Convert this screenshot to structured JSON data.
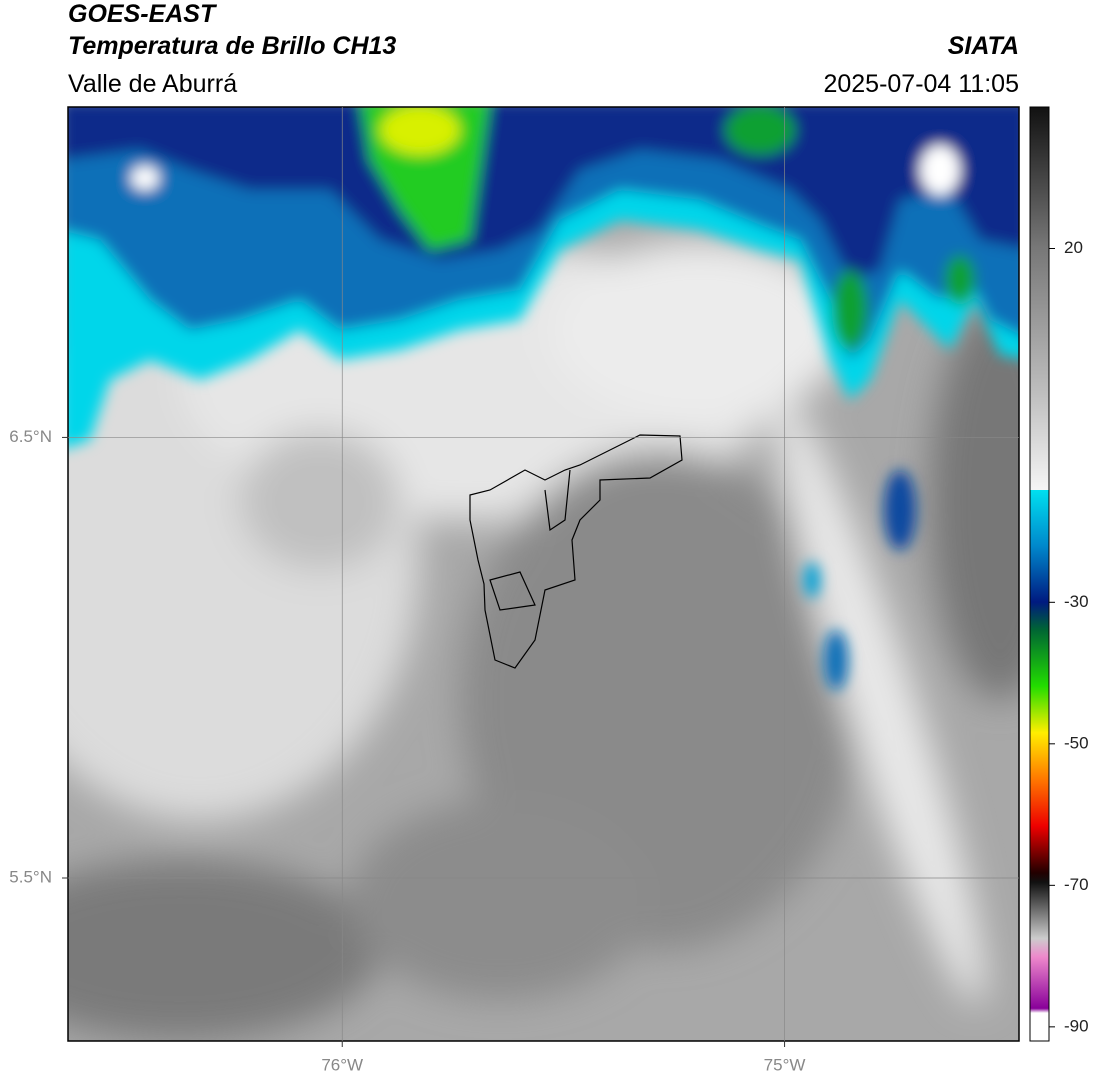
{
  "header": {
    "source": "GOES-EAST",
    "product": "Temperatura de Brillo CH13",
    "region": "Valle de Aburrá",
    "agency": "SIATA",
    "timestamp": "2025-07-04 11:05"
  },
  "chart_data": {
    "type": "map",
    "xlim": [
      -76.62,
      -74.47
    ],
    "ylim": [
      5.13,
      7.25
    ],
    "xticks": [
      {
        "value": -76,
        "label": "76°W"
      },
      {
        "value": -75,
        "label": "75°W"
      }
    ],
    "yticks": [
      {
        "value": 6.5,
        "label": "6.5°N"
      },
      {
        "value": 5.5,
        "label": "5.5°N"
      }
    ],
    "grid": true,
    "colorbar": {
      "lim": [
        -92,
        40
      ],
      "ticks": [
        20,
        -30,
        -50,
        -70,
        -90
      ]
    }
  }
}
